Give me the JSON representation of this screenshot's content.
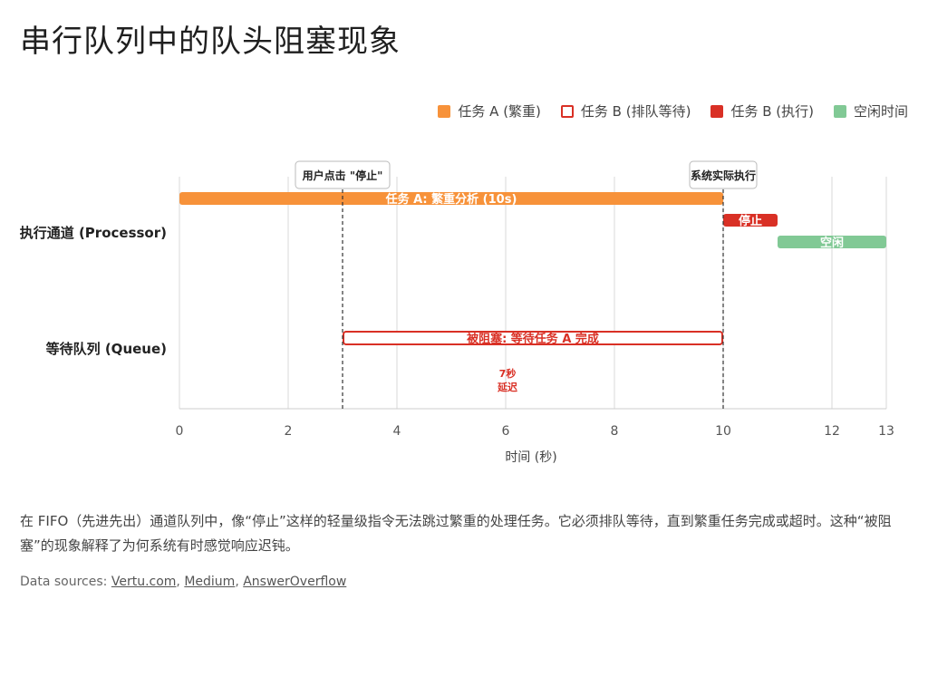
{
  "page": {
    "title": "串行队列中的队头阻塞现象",
    "description": "在 FIFO（先进先出）通道队列中，像“停止”这样的轻量级指令无法跳过繁重的处理任务。它必须排队等待，直到繁重任务完成或超时。这种“被阻塞”的现象解释了为何系统有时感觉响应迟钝。",
    "sources_prefix": "Data sources: ",
    "sources": [
      "Vertu.com",
      "Medium",
      "AnswerOverflow"
    ]
  },
  "legend": [
    {
      "label": "任务 A (繁重)",
      "color": "#F7923A",
      "style": "filled"
    },
    {
      "label": "任务 B (排队等待)",
      "color": "#D93025",
      "style": "outline"
    },
    {
      "label": "任务 B (执行)",
      "color": "#D93025",
      "style": "filled"
    },
    {
      "label": "空闲时间",
      "color": "#81C995",
      "style": "filled"
    }
  ],
  "chart_data": {
    "type": "bar",
    "orientation": "horizontal-gantt",
    "xlabel": "时间 (秒)",
    "xlim": [
      0,
      13
    ],
    "xticks": [
      0,
      2,
      4,
      6,
      8,
      10,
      12,
      13
    ],
    "grid": true,
    "legend_position": "top-right",
    "rows": [
      "执行通道 (Processor)",
      "等待队列 (Queue)"
    ],
    "bars": [
      {
        "row": 0,
        "lane": 0,
        "start": 0,
        "end": 10,
        "label": "任务 A: 繁重分析 (10s)",
        "color": "#F7923A",
        "style": "filled"
      },
      {
        "row": 0,
        "lane": 1,
        "start": 10,
        "end": 11,
        "label": "停止",
        "color": "#D93025",
        "style": "filled"
      },
      {
        "row": 0,
        "lane": 2,
        "start": 11,
        "end": 13,
        "label": "空闲",
        "color": "#81C995",
        "style": "filled"
      },
      {
        "row": 1,
        "lane": 0,
        "start": 3,
        "end": 10,
        "label": "被阻塞: 等待任务 A 完成",
        "color": "#D93025",
        "style": "outline"
      }
    ],
    "markers": [
      {
        "x": 3,
        "label": "用户点击 \"停止\""
      },
      {
        "x": 10,
        "label": "系统实际执行"
      }
    ],
    "annotations": [
      {
        "x": 6.5,
        "row": 1,
        "lines": [
          "7秒",
          "延迟"
        ],
        "color": "#D93025"
      }
    ]
  }
}
